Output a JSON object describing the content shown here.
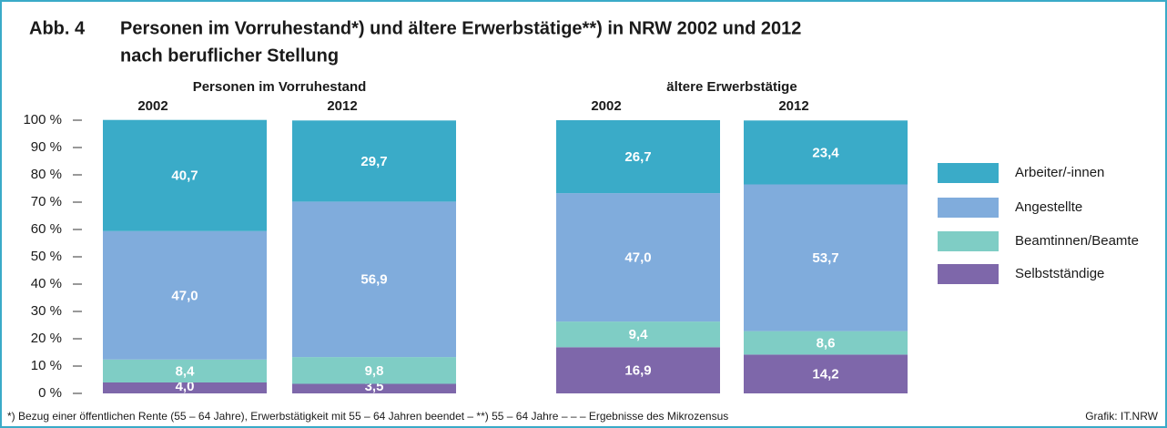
{
  "chart_data": {
    "type": "stacked_bar",
    "title_number": "Abb. 4",
    "title": [
      "Personen im Vorruhestand*) und ältere Erwerbstätige**) in NRW 2002 und 2012",
      "nach beruflicher Stellung"
    ],
    "groups": [
      "Personen im Vorruhestand",
      "ältere Erwerbstätige"
    ],
    "categories": [
      "2002",
      "2012",
      "2002",
      "2012"
    ],
    "series": [
      {
        "name": "Arbeiter/-innen",
        "color": "#3aabc8",
        "values": [
          40.7,
          29.7,
          26.7,
          23.4
        ],
        "value_labels": [
          "40,7",
          "29,7",
          "26,7",
          "23,4"
        ]
      },
      {
        "name": "Angestellte",
        "color": "#80acdc",
        "values": [
          47.0,
          56.9,
          47.0,
          53.7
        ],
        "value_labels": [
          "47,0",
          "56,9",
          "47,0",
          "53,7"
        ]
      },
      {
        "name": "Beamtinnen/Beamte",
        "color": "#7fcdc5",
        "values": [
          8.4,
          9.8,
          9.4,
          8.6
        ],
        "value_labels": [
          "8,4",
          "9,8",
          "9,4",
          "8,6"
        ]
      },
      {
        "name": "Selbstständige",
        "color": "#7e67aa",
        "values": [
          4.0,
          3.5,
          16.9,
          14.2
        ],
        "value_labels": [
          "4,0",
          "3,5",
          "16,9",
          "14,2"
        ]
      }
    ],
    "ylim": [
      0,
      100
    ],
    "yticks": [
      {
        "value": 0,
        "label": "0 %"
      },
      {
        "value": 10,
        "label": "10 %"
      },
      {
        "value": 20,
        "label": "20 %"
      },
      {
        "value": 30,
        "label": "30 %"
      },
      {
        "value": 40,
        "label": "40 %"
      },
      {
        "value": 50,
        "label": "50 %"
      },
      {
        "value": 60,
        "label": "60 %"
      },
      {
        "value": 70,
        "label": "70 %"
      },
      {
        "value": 80,
        "label": "80 %"
      },
      {
        "value": 90,
        "label": "90 %"
      },
      {
        "value": 100,
        "label": "100 %"
      }
    ],
    "legend": "right",
    "footnote": "*) Bezug einer öffentlichen Rente (55 – 64 Jahre), Erwerbstätigkeit mit 55 – 64 Jahren beendet – **) 55 – 64 Jahre – – – Ergebnisse des  Mikrozensus",
    "source": "Grafik: IT.NRW"
  }
}
